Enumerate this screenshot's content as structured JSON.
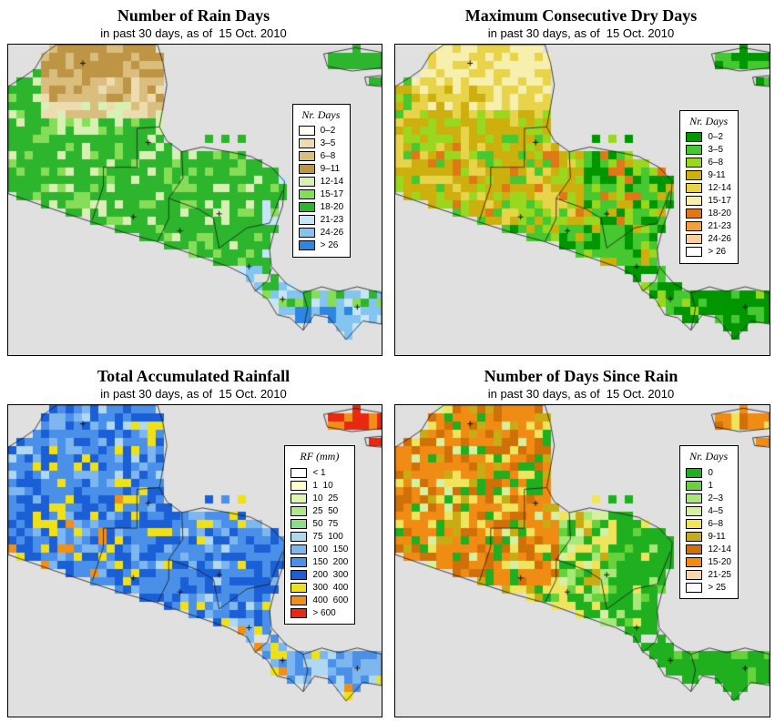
{
  "map": {
    "sea_color": "#E0E0E0",
    "outline_color": "#1a1a1a",
    "frame_color": "#000000"
  },
  "panels": [
    {
      "id": "rain-days",
      "title": "Number of Rain Days",
      "subtitle": "in past 30 days, as of  15 Oct. 2010",
      "legend_title": "Nr. Days",
      "legend": [
        {
          "label": "0–2",
          "color": "#FFFFF2"
        },
        {
          "label": "3–5",
          "color": "#EEDCB0"
        },
        {
          "label": "6–8",
          "color": "#D9BE7E"
        },
        {
          "label": "9–11",
          "color": "#BE9445"
        },
        {
          "label": "12-14",
          "color": "#D8F0B4"
        },
        {
          "label": "15-17",
          "color": "#86DE58"
        },
        {
          "label": "18-20",
          "color": "#2DB52D"
        },
        {
          "label": "21-23",
          "color": "#C6E6F8"
        },
        {
          "label": "24-26",
          "color": "#84C4F0"
        },
        {
          "label": "> 26",
          "color": "#2E86E0"
        }
      ]
    },
    {
      "id": "dry-days",
      "title": "Maximum Consecutive Dry Days",
      "subtitle": "in past 30 days, as of  15 Oct. 2010",
      "legend_title": "Nr. Days",
      "legend": [
        {
          "label": "0–2",
          "color": "#009600"
        },
        {
          "label": "3–5",
          "color": "#45C830"
        },
        {
          "label": "6–8",
          "color": "#9AD820"
        },
        {
          "label": "9-11",
          "color": "#CDB00E"
        },
        {
          "label": "12-14",
          "color": "#E8D44A"
        },
        {
          "label": "15-17",
          "color": "#F6EFAE"
        },
        {
          "label": "18-20",
          "color": "#E07818"
        },
        {
          "label": "21-23",
          "color": "#F0A040"
        },
        {
          "label": "24-26",
          "color": "#F8D0A0"
        },
        {
          "label": "> 26",
          "color": "#FFFFFF"
        }
      ]
    },
    {
      "id": "rainfall",
      "title": "Total Accumulated Rainfall",
      "subtitle": "in past 30 days, as of  15 Oct. 2010",
      "legend_title": "RF (mm)",
      "legend": [
        {
          "label": "< 1",
          "color": "#FFFFFF"
        },
        {
          "label": "1  10",
          "color": "#FFFFC8"
        },
        {
          "label": "10  25",
          "color": "#E0F5B0"
        },
        {
          "label": "25  50",
          "color": "#AEE88E"
        },
        {
          "label": "50  75",
          "color": "#8CDE8C"
        },
        {
          "label": "75  100",
          "color": "#B0D8F0"
        },
        {
          "label": "100  150",
          "color": "#7EB6F0"
        },
        {
          "label": "150  200",
          "color": "#4A90E8"
        },
        {
          "label": "200  300",
          "color": "#1A5FD6"
        },
        {
          "label": "300  400",
          "color": "#F0E018"
        },
        {
          "label": "400  600",
          "color": "#F09018"
        },
        {
          "label": "> 600",
          "color": "#E82810"
        }
      ]
    },
    {
      "id": "days-since-rain",
      "title": "Number of Days Since Rain",
      "subtitle": "in past 30 days, as of  15 Oct. 2010",
      "legend_title": "Nr. Days",
      "legend": [
        {
          "label": "0",
          "color": "#1FAF1F"
        },
        {
          "label": "1",
          "color": "#66D23C"
        },
        {
          "label": "2–3",
          "color": "#A8E878"
        },
        {
          "label": "4–5",
          "color": "#D6F0A0"
        },
        {
          "label": "6–8",
          "color": "#EFE45C"
        },
        {
          "label": "9-11",
          "color": "#C8AC14"
        },
        {
          "label": "12-14",
          "color": "#D07008"
        },
        {
          "label": "15-20",
          "color": "#F08C14"
        },
        {
          "label": "21-25",
          "color": "#F8D8A8"
        },
        {
          "label": "> 25",
          "color": "#FFFFFF"
        }
      ]
    }
  ]
}
